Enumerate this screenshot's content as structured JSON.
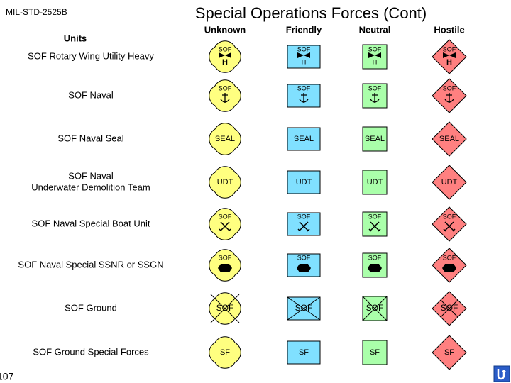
{
  "header": {
    "standard": "MIL-STD-2525B",
    "title": "Special Operations Forces (Cont)",
    "units_label": "Units"
  },
  "columns": [
    "Unknown",
    "Friendly",
    "Neutral",
    "Hostile"
  ],
  "rows": [
    {
      "label": [
        "SOF Rotary Wing Utility Heavy"
      ],
      "symbol_text": "SOF",
      "modifier": "H"
    },
    {
      "label": [
        "SOF Naval"
      ],
      "symbol_text": "SOF"
    },
    {
      "label": [
        "SOF Naval Seal"
      ],
      "symbol_text": "SEAL"
    },
    {
      "label": [
        "SOF Naval",
        "Underwater Demolition Team"
      ],
      "symbol_text": "UDT"
    },
    {
      "label": [
        "SOF Naval Special Boat Unit"
      ],
      "symbol_text": "SOF"
    },
    {
      "label": [
        "SOF Naval Special SSNR or SSGN"
      ],
      "symbol_text": "SOF"
    },
    {
      "label": [
        "SOF Ground"
      ],
      "symbol_text": "SOF"
    },
    {
      "label": [
        "SOF Ground Special Forces"
      ],
      "symbol_text": "SF"
    }
  ],
  "footer": {
    "page": "107"
  }
}
